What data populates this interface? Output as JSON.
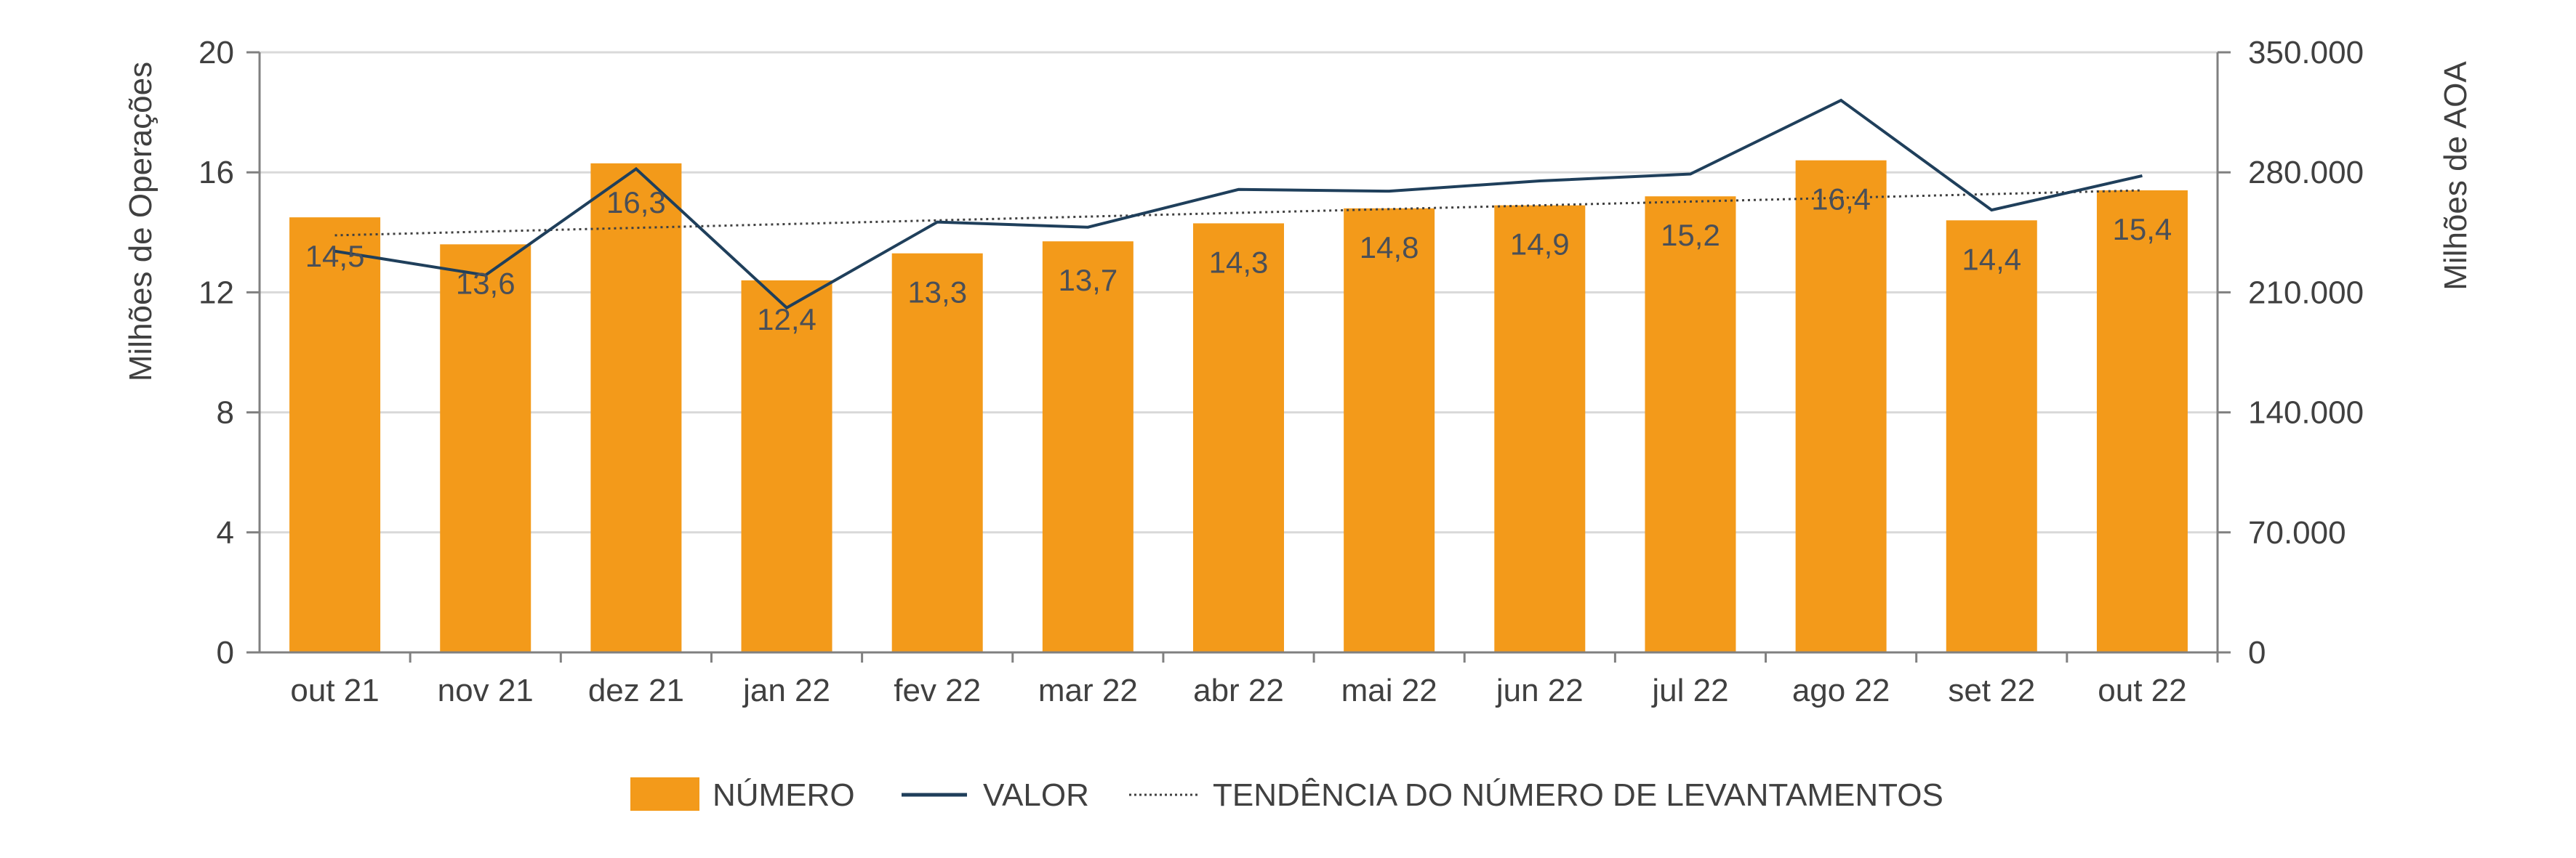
{
  "chart_data": {
    "type": "bar",
    "categories": [
      "out 21",
      "nov 21",
      "dez 21",
      "jan 22",
      "fev 22",
      "mar 22",
      "abr 22",
      "mai 22",
      "jun 22",
      "jul 22",
      "ago 22",
      "set 22",
      "out 22"
    ],
    "series": [
      {
        "name": "NÚMERO",
        "type": "bar",
        "axis": "left",
        "color": "#F39A1A",
        "values": [
          14.5,
          13.6,
          16.3,
          12.4,
          13.3,
          13.7,
          14.3,
          14.8,
          14.9,
          15.2,
          16.4,
          14.4,
          15.4
        ],
        "data_labels": [
          "14,5",
          "13,6",
          "16,3",
          "12,4",
          "13,3",
          "13,7",
          "14,3",
          "14,8",
          "14,9",
          "15,2",
          "16,4",
          "14,4",
          "15,4"
        ]
      },
      {
        "name": "VALOR",
        "type": "line",
        "axis": "right",
        "color": "#1F3F5B",
        "values": [
          234000,
          220000,
          282000,
          201000,
          251000,
          248000,
          270000,
          269000,
          275000,
          279000,
          322000,
          258000,
          278000
        ]
      },
      {
        "name": "TENDÊNCIA DO NÚMERO DE LEVANTAMENTOS",
        "type": "trendline",
        "axis": "left",
        "color": "#404040",
        "style": "dotted",
        "start": 13.9,
        "end": 15.4
      }
    ],
    "y_left": {
      "label": "Milhões de Operações",
      "range": [
        0,
        20
      ],
      "ticks": [
        "0",
        "4",
        "8",
        "12",
        "16",
        "20"
      ]
    },
    "y_right": {
      "label": "Milhões de AOA",
      "range": [
        0,
        350000
      ],
      "ticks": [
        "0",
        "70.000",
        "140.000",
        "210.000",
        "280.000",
        "350.000"
      ]
    },
    "grid": true,
    "legend_position": "bottom"
  }
}
